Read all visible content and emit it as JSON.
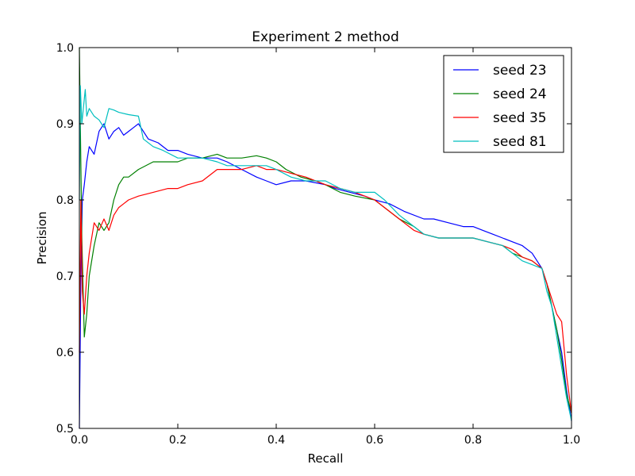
{
  "chart_data": {
    "type": "line",
    "title": "Experiment 2 method",
    "xlabel": "Recall",
    "ylabel": "Precision",
    "xlim": [
      0.0,
      1.0
    ],
    "ylim": [
      0.5,
      1.0
    ],
    "xticks": [
      "0.0",
      "0.2",
      "0.4",
      "0.6",
      "0.8",
      "1.0"
    ],
    "yticks": [
      "0.5",
      "0.6",
      "0.7",
      "0.8",
      "0.9",
      "1.0"
    ],
    "grid": false,
    "legend_position": "top-right",
    "series": [
      {
        "name": "seed 23",
        "color": "#0000ff",
        "x": [
          0.0,
          0.003,
          0.006,
          0.01,
          0.015,
          0.02,
          0.03,
          0.04,
          0.05,
          0.06,
          0.07,
          0.08,
          0.09,
          0.1,
          0.11,
          0.12,
          0.14,
          0.16,
          0.18,
          0.2,
          0.22,
          0.25,
          0.28,
          0.3,
          0.33,
          0.36,
          0.38,
          0.4,
          0.43,
          0.46,
          0.5,
          0.52,
          0.55,
          0.58,
          0.6,
          0.63,
          0.66,
          0.7,
          0.72,
          0.75,
          0.78,
          0.8,
          0.82,
          0.84,
          0.86,
          0.88,
          0.9,
          0.92,
          0.94,
          0.95,
          0.96,
          0.97,
          0.98,
          0.99,
          1.0
        ],
        "y": [
          0.5,
          0.7,
          0.8,
          0.82,
          0.85,
          0.87,
          0.86,
          0.89,
          0.9,
          0.88,
          0.89,
          0.895,
          0.885,
          0.89,
          0.895,
          0.9,
          0.88,
          0.875,
          0.865,
          0.865,
          0.86,
          0.855,
          0.855,
          0.85,
          0.84,
          0.83,
          0.825,
          0.82,
          0.825,
          0.825,
          0.82,
          0.815,
          0.81,
          0.805,
          0.8,
          0.795,
          0.785,
          0.775,
          0.775,
          0.77,
          0.765,
          0.765,
          0.76,
          0.755,
          0.75,
          0.745,
          0.74,
          0.73,
          0.71,
          0.69,
          0.66,
          0.63,
          0.6,
          0.55,
          0.51
        ]
      },
      {
        "name": "seed 24",
        "color": "#008000",
        "x": [
          0.0,
          0.002,
          0.005,
          0.01,
          0.015,
          0.02,
          0.03,
          0.04,
          0.05,
          0.06,
          0.07,
          0.08,
          0.09,
          0.1,
          0.12,
          0.15,
          0.18,
          0.2,
          0.22,
          0.25,
          0.28,
          0.3,
          0.33,
          0.36,
          0.38,
          0.4,
          0.42,
          0.45,
          0.48,
          0.5,
          0.53,
          0.56,
          0.6,
          0.62,
          0.65,
          0.68,
          0.7,
          0.73,
          0.76,
          0.8,
          0.83,
          0.86,
          0.88,
          0.9,
          0.92,
          0.94,
          0.95,
          0.96,
          0.97,
          0.98,
          0.99,
          1.0
        ],
        "y": [
          1.0,
          0.9,
          0.75,
          0.62,
          0.65,
          0.7,
          0.74,
          0.77,
          0.76,
          0.77,
          0.8,
          0.82,
          0.83,
          0.83,
          0.84,
          0.85,
          0.85,
          0.85,
          0.855,
          0.855,
          0.86,
          0.855,
          0.855,
          0.858,
          0.855,
          0.85,
          0.84,
          0.83,
          0.825,
          0.82,
          0.81,
          0.805,
          0.8,
          0.79,
          0.775,
          0.765,
          0.755,
          0.75,
          0.75,
          0.75,
          0.745,
          0.74,
          0.73,
          0.725,
          0.72,
          0.71,
          0.69,
          0.66,
          0.63,
          0.59,
          0.545,
          0.52
        ]
      },
      {
        "name": "seed 35",
        "color": "#ff0000",
        "x": [
          0.0,
          0.003,
          0.006,
          0.01,
          0.015,
          0.02,
          0.03,
          0.04,
          0.05,
          0.06,
          0.07,
          0.08,
          0.09,
          0.1,
          0.12,
          0.15,
          0.18,
          0.2,
          0.22,
          0.25,
          0.28,
          0.3,
          0.33,
          0.36,
          0.38,
          0.4,
          0.43,
          0.46,
          0.5,
          0.53,
          0.56,
          0.6,
          0.62,
          0.65,
          0.68,
          0.7,
          0.73,
          0.76,
          0.8,
          0.83,
          0.86,
          0.88,
          0.9,
          0.92,
          0.94,
          0.95,
          0.96,
          0.97,
          0.98,
          0.99,
          1.0
        ],
        "y": [
          0.6,
          0.8,
          0.68,
          0.65,
          0.7,
          0.73,
          0.77,
          0.76,
          0.775,
          0.76,
          0.78,
          0.79,
          0.795,
          0.8,
          0.805,
          0.81,
          0.815,
          0.815,
          0.82,
          0.825,
          0.84,
          0.84,
          0.84,
          0.845,
          0.84,
          0.84,
          0.835,
          0.83,
          0.82,
          0.815,
          0.81,
          0.8,
          0.79,
          0.775,
          0.76,
          0.755,
          0.75,
          0.75,
          0.75,
          0.745,
          0.74,
          0.735,
          0.725,
          0.72,
          0.71,
          0.69,
          0.67,
          0.65,
          0.64,
          0.57,
          0.52
        ]
      },
      {
        "name": "seed 81",
        "color": "#00bfbf",
        "x": [
          0.0,
          0.002,
          0.005,
          0.008,
          0.012,
          0.015,
          0.02,
          0.03,
          0.04,
          0.05,
          0.06,
          0.07,
          0.08,
          0.1,
          0.12,
          0.13,
          0.15,
          0.17,
          0.2,
          0.22,
          0.25,
          0.28,
          0.3,
          0.33,
          0.36,
          0.38,
          0.4,
          0.43,
          0.46,
          0.48,
          0.5,
          0.53,
          0.56,
          0.6,
          0.62,
          0.65,
          0.68,
          0.7,
          0.73,
          0.76,
          0.8,
          0.83,
          0.86,
          0.88,
          0.9,
          0.92,
          0.94,
          0.95,
          0.96,
          0.97,
          0.98,
          0.99,
          1.0
        ],
        "y": [
          0.8,
          0.95,
          0.9,
          0.92,
          0.945,
          0.91,
          0.92,
          0.91,
          0.905,
          0.895,
          0.92,
          0.918,
          0.915,
          0.912,
          0.91,
          0.88,
          0.87,
          0.865,
          0.855,
          0.855,
          0.855,
          0.85,
          0.845,
          0.845,
          0.845,
          0.845,
          0.84,
          0.83,
          0.825,
          0.825,
          0.825,
          0.815,
          0.81,
          0.81,
          0.8,
          0.78,
          0.765,
          0.755,
          0.75,
          0.75,
          0.75,
          0.745,
          0.74,
          0.73,
          0.72,
          0.715,
          0.71,
          0.68,
          0.66,
          0.62,
          0.58,
          0.54,
          0.51
        ]
      }
    ]
  }
}
